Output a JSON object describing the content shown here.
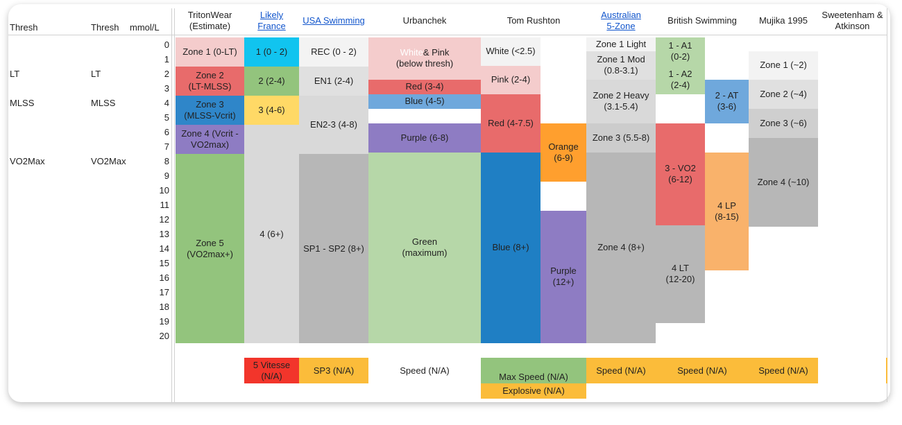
{
  "header": {
    "thresh_1": "Thresh",
    "thresh_2": "Thresh",
    "unit": "mmol/L",
    "columns": [
      "TritonWear\n(Estimate)",
      "Likely\nFrance",
      "USA Swimming",
      "Urbanchek",
      "Tom Rushton",
      "Australian\n5-Zone",
      "British Swimming",
      "Mujika 1995",
      "Sweetenham &\nAtkinson"
    ]
  },
  "thresholds": [
    [
      "LT",
      "LT"
    ],
    [
      "MLSS",
      "MLSS"
    ],
    [
      "VO2Max",
      "VO2Max"
    ]
  ],
  "mmol": [
    0,
    1,
    2,
    3,
    4,
    5,
    6,
    7,
    8,
    9,
    10,
    11,
    12,
    13,
    14,
    15,
    16,
    17,
    18,
    19,
    20
  ],
  "blocks": [
    "Zone 1 (0-LT)",
    "Zone 2\n(LT-MLSS)",
    "Zone 3\n(MLSS-Vcrit)",
    "Zone 4 (Vcrit -\nVO2max)",
    "Zone 5\n(VO2max+)",
    "1 (0 - 2)",
    "2 (2-4)",
    "3 (4-6)",
    "4 (6+)",
    "REC (0 - 2)",
    "EN1 (2-4)",
    "EN2-3 (4-8)",
    "SP1 - SP2 (8+)",
    "White",
    "& Pink\n(below thresh)",
    "Red (3-4)",
    "Blue (4-5)",
    "Purple (6-8)",
    "Green\n(maximum)",
    "White (<2.5)",
    "Pink (2-4)",
    "Red (4-7.5)",
    "Blue (8+)",
    "Orange\n(6-9)",
    "Purple\n(12+)",
    "Zone 1 Light",
    "Zone 1 Mod\n(0.8-3.1)",
    "Zone 2 Heavy\n(3.1-5.4)",
    "Zone 3 (5.5-8)",
    "Zone 4 (8+)",
    "1 - A1\n(0-2)",
    "1 - A2\n(2-4)",
    "3 - VO2\n(6-12)",
    "4 LT\n(12-20)",
    "2 - AT\n(3-6)",
    "4 LP\n(8-15)",
    "Zone 1 (~2)",
    "Zone 2 (~4)",
    "Zone 3 (~6)",
    "Zone 4 (~10)"
  ],
  "bottom": [
    "5 Vitesse\n(N/A)",
    "SP3 (N/A)",
    "Speed (N/A)",
    "Max Speed (N/A)",
    "Explosive (N/A)",
    "Speed (N/A)",
    "Speed (N/A)",
    "Speed (N/A)"
  ]
}
